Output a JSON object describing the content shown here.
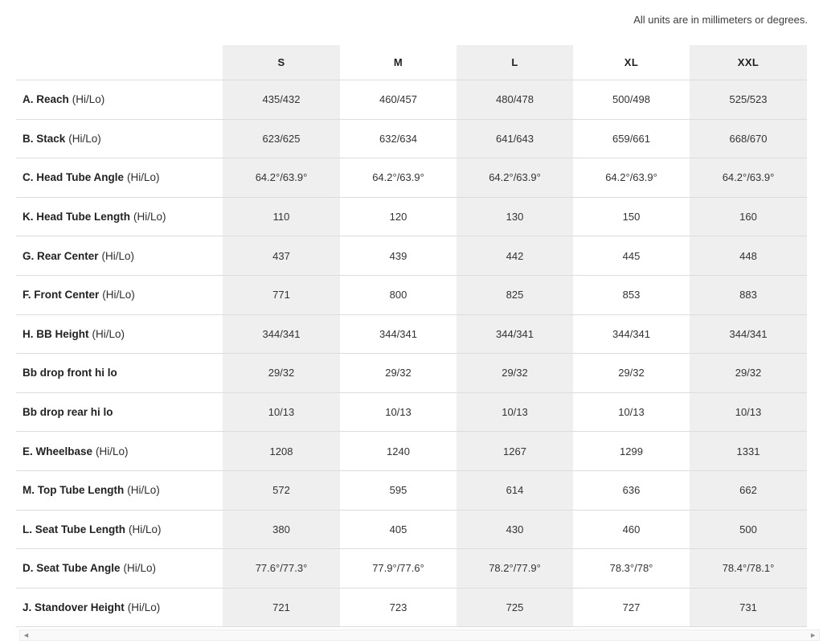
{
  "note": "All units are in millimeters or degrees.",
  "table": {
    "columns": [
      "S",
      "M",
      "L",
      "XL",
      "XXL"
    ],
    "shaded_columns": [
      0,
      2,
      4
    ],
    "rows": [
      {
        "label": "A. Reach",
        "suffix": "(Hi/Lo)",
        "values": [
          "435/432",
          "460/457",
          "480/478",
          "500/498",
          "525/523"
        ]
      },
      {
        "label": "B. Stack",
        "suffix": "(Hi/Lo)",
        "values": [
          "623/625",
          "632/634",
          "641/643",
          "659/661",
          "668/670"
        ]
      },
      {
        "label": "C. Head Tube Angle",
        "suffix": "(Hi/Lo)",
        "values": [
          "64.2°/63.9°",
          "64.2°/63.9°",
          "64.2°/63.9°",
          "64.2°/63.9°",
          "64.2°/63.9°"
        ]
      },
      {
        "label": "K. Head Tube Length",
        "suffix": "(Hi/Lo)",
        "values": [
          "110",
          "120",
          "130",
          "150",
          "160"
        ]
      },
      {
        "label": "G. Rear Center",
        "suffix": "(Hi/Lo)",
        "values": [
          "437",
          "439",
          "442",
          "445",
          "448"
        ]
      },
      {
        "label": "F. Front Center",
        "suffix": "(Hi/Lo)",
        "values": [
          "771",
          "800",
          "825",
          "853",
          "883"
        ]
      },
      {
        "label": "H. BB Height",
        "suffix": "(Hi/Lo)",
        "values": [
          "344/341",
          "344/341",
          "344/341",
          "344/341",
          "344/341"
        ]
      },
      {
        "label": "Bb drop front hi lo",
        "suffix": "",
        "values": [
          "29/32",
          "29/32",
          "29/32",
          "29/32",
          "29/32"
        ]
      },
      {
        "label": "Bb drop rear hi lo",
        "suffix": "",
        "values": [
          "10/13",
          "10/13",
          "10/13",
          "10/13",
          "10/13"
        ]
      },
      {
        "label": "E. Wheelbase",
        "suffix": "(Hi/Lo)",
        "values": [
          "1208",
          "1240",
          "1267",
          "1299",
          "1331"
        ]
      },
      {
        "label": "M. Top Tube Length",
        "suffix": "(Hi/Lo)",
        "values": [
          "572",
          "595",
          "614",
          "636",
          "662"
        ]
      },
      {
        "label": "L. Seat Tube Length",
        "suffix": "(Hi/Lo)",
        "values": [
          "380",
          "405",
          "430",
          "460",
          "500"
        ]
      },
      {
        "label": "D. Seat Tube Angle",
        "suffix": "(Hi/Lo)",
        "values": [
          "77.6°/77.3°",
          "77.9°/77.6°",
          "78.2°/77.9°",
          "78.3°/78°",
          "78.4°/78.1°"
        ]
      },
      {
        "label": "J. Standover Height",
        "suffix": "(Hi/Lo)",
        "values": [
          "721",
          "723",
          "725",
          "727",
          "731"
        ]
      }
    ]
  },
  "colors": {
    "shaded_column": "#efefef",
    "row_border": "#dcdcdc",
    "text": "#333333",
    "scrollbar_track": "#f9f9f9",
    "scrollbar_arrow": "#8b8b8b"
  },
  "scrollbar": {
    "left_arrow": "◄",
    "right_arrow": "►"
  }
}
